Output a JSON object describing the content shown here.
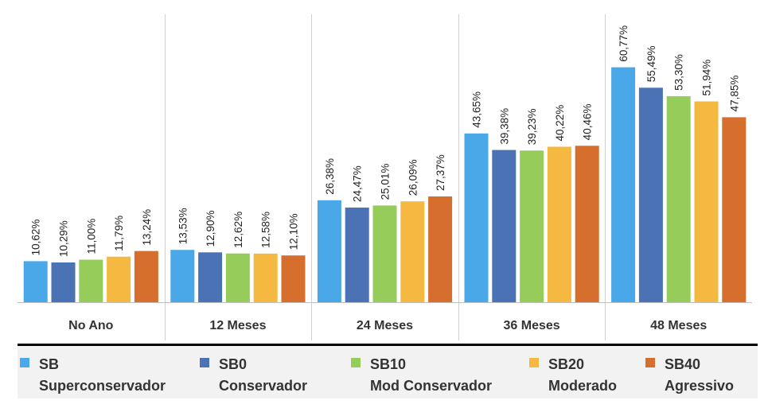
{
  "chart_data": {
    "type": "bar",
    "categories": [
      "No Ano",
      "12 Meses",
      "24 Meses",
      "36 Meses",
      "48 Meses"
    ],
    "series": [
      {
        "name": "SB Superconservador",
        "legend_lines": [
          "SB",
          "Superconservador"
        ],
        "color": "#4aa8e8",
        "values": [
          10.62,
          13.53,
          26.38,
          43.65,
          60.77
        ],
        "labels": [
          "10,62%",
          "13,53%",
          "26,38%",
          "43,65%",
          "60,77%"
        ]
      },
      {
        "name": "SB0 Conservador",
        "legend_lines": [
          "SB0",
          "Conservador"
        ],
        "color": "#4a72b5",
        "values": [
          10.29,
          12.9,
          24.47,
          39.38,
          55.49
        ],
        "labels": [
          "10,29%",
          "12,90%",
          "24,47%",
          "39,38%",
          "55,49%"
        ]
      },
      {
        "name": "SB10 Mod Conservador",
        "legend_lines": [
          "SB10",
          "Mod Conservador"
        ],
        "color": "#96cc5a",
        "values": [
          11.0,
          12.62,
          25.01,
          39.23,
          53.3
        ],
        "labels": [
          "11,00%",
          "12,62%",
          "25,01%",
          "39,23%",
          "53,30%"
        ]
      },
      {
        "name": "SB20 Moderado",
        "legend_lines": [
          "SB20",
          "Moderado"
        ],
        "color": "#f5b942",
        "values": [
          11.79,
          12.58,
          26.09,
          40.22,
          51.94
        ],
        "labels": [
          "11,79%",
          "12,58%",
          "26,09%",
          "40,22%",
          "51,94%"
        ]
      },
      {
        "name": "SB40 Agressivo",
        "legend_lines": [
          "SB40",
          "Agressivo"
        ],
        "color": "#d66e2e",
        "values": [
          13.24,
          12.1,
          27.37,
          40.46,
          47.85
        ],
        "labels": [
          "13,24%",
          "12,10%",
          "27,37%",
          "40,46%",
          "47,85%"
        ]
      }
    ],
    "title": "",
    "xlabel": "",
    "ylabel": "",
    "ylim": [
      0,
      72
    ],
    "grid": false,
    "legend_position": "bottom"
  }
}
